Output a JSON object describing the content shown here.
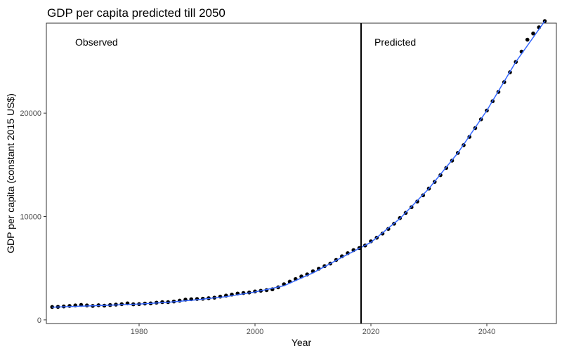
{
  "chart_data": {
    "type": "line",
    "title": "GDP per capita predicted till 2050",
    "xlabel": "Year",
    "ylabel": "GDP per capita (constant 2015 US$)",
    "xlim": [
      1964,
      2052
    ],
    "ylim": [
      -350,
      28700
    ],
    "x_ticks": [
      1980,
      2000,
      2020,
      2040
    ],
    "y_ticks": [
      0,
      10000,
      20000
    ],
    "grid": false,
    "split_year": 2018.3,
    "annotations": {
      "observed": "Observed",
      "predicted": "Predicted"
    },
    "colors": {
      "points": "#000000",
      "fit_line": "#3366FF",
      "divider": "#000000"
    },
    "series": [
      {
        "kind": "points",
        "x": [
          1965,
          1966,
          1967,
          1968,
          1969,
          1970,
          1971,
          1972,
          1973,
          1974,
          1975,
          1976,
          1977,
          1978,
          1979,
          1980,
          1981,
          1982,
          1983,
          1984,
          1985,
          1986,
          1987,
          1988,
          1989,
          1990,
          1991,
          1992,
          1993,
          1994,
          1995,
          1996,
          1997,
          1998,
          1999,
          2000,
          2001,
          2002,
          2003,
          2004,
          2005,
          2006,
          2007,
          2008,
          2009,
          2010,
          2011,
          2012,
          2013,
          2014,
          2015,
          2016,
          2017,
          2018,
          2019,
          2020,
          2021,
          2022,
          2023,
          2024,
          2025,
          2026,
          2027,
          2028,
          2029,
          2030,
          2031,
          2032,
          2033,
          2034,
          2035,
          2036,
          2037,
          2038,
          2039,
          2040,
          2041,
          2042,
          2043,
          2044,
          2045,
          2046,
          2047,
          2048,
          2049,
          2050
        ],
        "y": [
          1250,
          1260,
          1300,
          1350,
          1400,
          1450,
          1400,
          1350,
          1420,
          1380,
          1440,
          1480,
          1520,
          1600,
          1510,
          1530,
          1580,
          1600,
          1670,
          1720,
          1720,
          1780,
          1860,
          1960,
          2000,
          2020,
          2050,
          2100,
          2150,
          2250,
          2350,
          2450,
          2550,
          2600,
          2650,
          2750,
          2820,
          2880,
          2960,
          3150,
          3450,
          3700,
          3950,
          4200,
          4400,
          4700,
          4950,
          5200,
          5450,
          5800,
          6150,
          6450,
          6750,
          6950,
          7200,
          7600,
          7950,
          8350,
          8800,
          9300,
          9850,
          10350,
          10900,
          11450,
          12050,
          12700,
          13350,
          14000,
          14700,
          15400,
          16150,
          16900,
          17700,
          18550,
          19400,
          20250,
          21150,
          22050,
          23000,
          23950,
          24950,
          25950,
          27100,
          27700,
          28300,
          28900
        ]
      },
      {
        "kind": "line",
        "x": [
          1965,
          1970,
          1975,
          1980,
          1985,
          1990,
          1995,
          2000,
          2005,
          2010,
          2015,
          2020,
          2025,
          2030,
          2035,
          2040,
          2045,
          2050
        ],
        "y": [
          1230,
          1330,
          1420,
          1530,
          1700,
          1950,
          2250,
          2700,
          3300,
          4550,
          6050,
          7500,
          9800,
          12700,
          16150,
          20250,
          24950,
          28900
        ]
      }
    ]
  }
}
